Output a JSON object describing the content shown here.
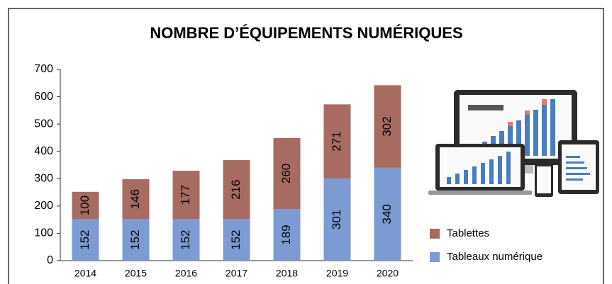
{
  "chart_data": {
    "type": "stacked_bar",
    "title": "NOMBRE D’ÉQUIPEMENTS NUMÉRIQUES",
    "categories": [
      "2014",
      "2015",
      "2016",
      "2017",
      "2018",
      "2019",
      "2020"
    ],
    "series": [
      {
        "name": "Tableaux numérique",
        "color": "#7b9bd2",
        "values": [
          152,
          152,
          152,
          152,
          189,
          301,
          340
        ]
      },
      {
        "name": "Tablettes",
        "color": "#a76b62",
        "values": [
          100,
          146,
          177,
          216,
          260,
          271,
          302
        ]
      }
    ],
    "ylim": [
      0,
      700
    ],
    "yticks": [
      0,
      100,
      200,
      300,
      400,
      500,
      600,
      700
    ],
    "grid": false
  }
}
